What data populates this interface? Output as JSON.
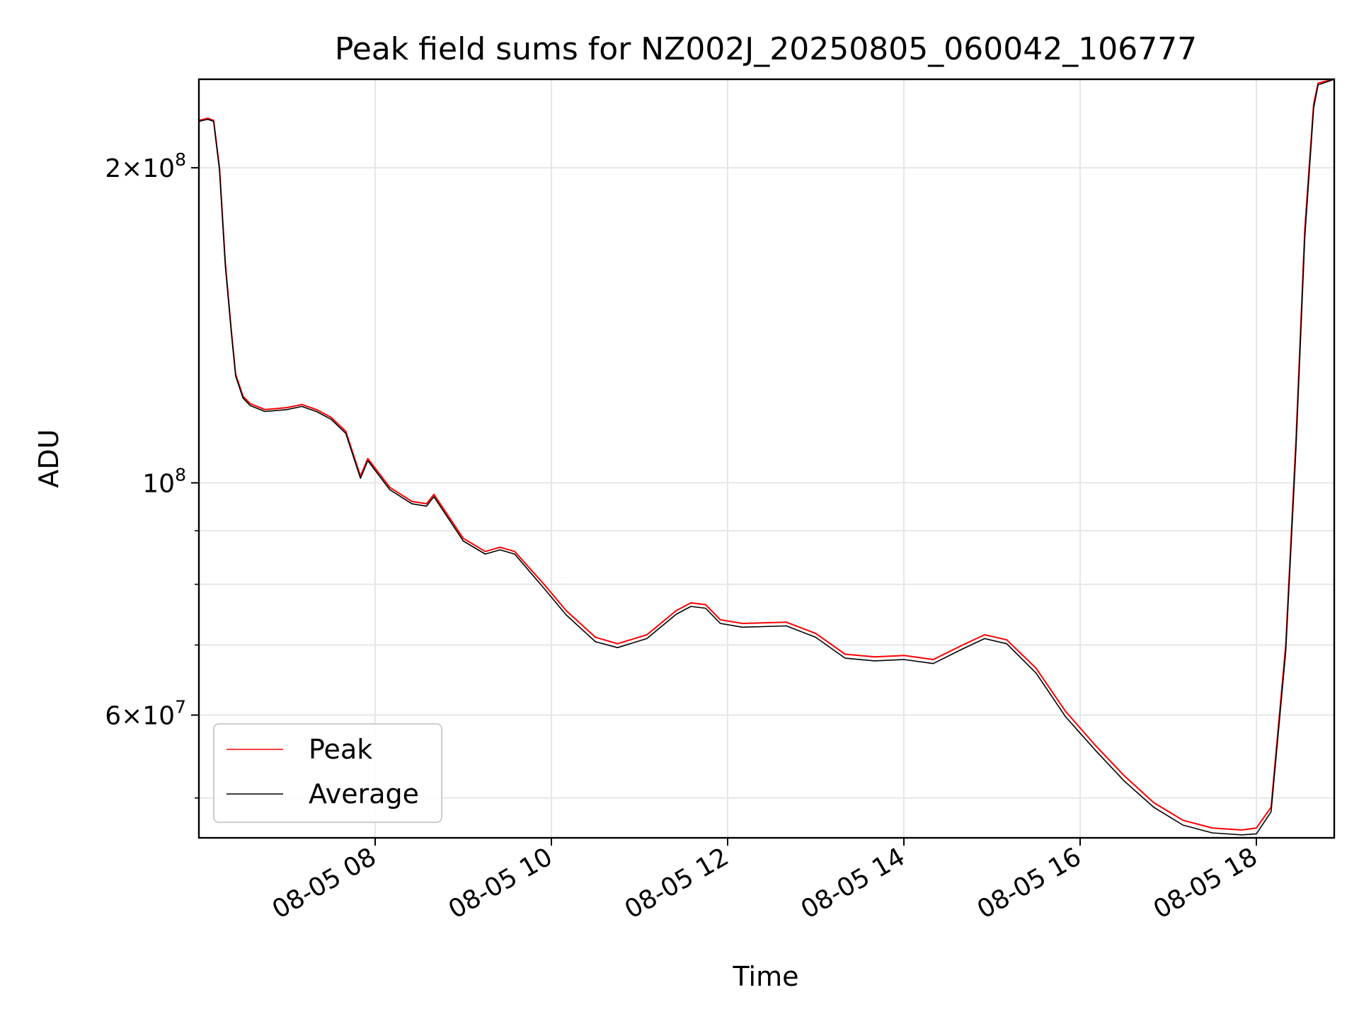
{
  "chart_data": {
    "type": "line",
    "title": "Peak field sums for NZ002J_20250805_060042_106777",
    "xlabel": "Time",
    "ylabel": "ADU",
    "y_scale": "log",
    "ylim": [
      45800000,
      243000000
    ],
    "xlim": [
      "2025-08-05T06:00",
      "2025-08-05T18:53"
    ],
    "grid": true,
    "legend_position": "lower left",
    "x_ticks": [
      {
        "value": "2025-08-05T08:00",
        "label": "08-05 08"
      },
      {
        "value": "2025-08-05T10:00",
        "label": "08-05 10"
      },
      {
        "value": "2025-08-05T12:00",
        "label": "08-05 12"
      },
      {
        "value": "2025-08-05T14:00",
        "label": "08-05 14"
      },
      {
        "value": "2025-08-05T16:00",
        "label": "08-05 16"
      },
      {
        "value": "2025-08-05T18:00",
        "label": "08-05 18"
      }
    ],
    "y_ticks_major": [
      {
        "value": 60000000,
        "mant": "6",
        "exp": "7"
      },
      {
        "value": 100000000,
        "mant": "",
        "exp": "8"
      },
      {
        "value": 200000000,
        "mant": "2",
        "exp": "8"
      }
    ],
    "y_ticks_minor": [
      50000000,
      70000000,
      80000000,
      90000000
    ],
    "series": [
      {
        "name": "Peak",
        "color": "#ff0000",
        "points": [
          [
            "2025-08-05T06:00",
            222000000
          ],
          [
            "2025-08-05T06:06",
            223000000
          ],
          [
            "2025-08-05T06:10",
            222000000
          ],
          [
            "2025-08-05T06:14",
            200000000
          ],
          [
            "2025-08-05T06:18",
            162000000
          ],
          [
            "2025-08-05T06:22",
            140000000
          ],
          [
            "2025-08-05T06:25",
            127000000
          ],
          [
            "2025-08-05T06:30",
            121000000
          ],
          [
            "2025-08-05T06:35",
            119000000
          ],
          [
            "2025-08-05T06:45",
            117500000
          ],
          [
            "2025-08-05T07:00",
            118000000
          ],
          [
            "2025-08-05T07:10",
            118800000
          ],
          [
            "2025-08-05T07:20",
            117500000
          ],
          [
            "2025-08-05T07:30",
            115500000
          ],
          [
            "2025-08-05T07:40",
            112000000
          ],
          [
            "2025-08-05T07:50",
            101500000
          ],
          [
            "2025-08-05T07:55",
            105500000
          ],
          [
            "2025-08-05T08:10",
            99000000
          ],
          [
            "2025-08-05T08:25",
            96000000
          ],
          [
            "2025-08-05T08:35",
            95500000
          ],
          [
            "2025-08-05T08:40",
            97500000
          ],
          [
            "2025-08-05T09:00",
            88500000
          ],
          [
            "2025-08-05T09:15",
            86000000
          ],
          [
            "2025-08-05T09:25",
            86800000
          ],
          [
            "2025-08-05T09:35",
            86000000
          ],
          [
            "2025-08-05T09:55",
            80000000
          ],
          [
            "2025-08-05T10:10",
            75500000
          ],
          [
            "2025-08-05T10:30",
            71200000
          ],
          [
            "2025-08-05T10:45",
            70200000
          ],
          [
            "2025-08-05T11:05",
            71600000
          ],
          [
            "2025-08-05T11:25",
            75500000
          ],
          [
            "2025-08-05T11:35",
            76800000
          ],
          [
            "2025-08-05T11:45",
            76500000
          ],
          [
            "2025-08-05T11:55",
            74000000
          ],
          [
            "2025-08-05T12:10",
            73400000
          ],
          [
            "2025-08-05T12:40",
            73600000
          ],
          [
            "2025-08-05T13:00",
            71800000
          ],
          [
            "2025-08-05T13:20",
            68600000
          ],
          [
            "2025-08-05T13:40",
            68200000
          ],
          [
            "2025-08-05T14:00",
            68400000
          ],
          [
            "2025-08-05T14:20",
            67800000
          ],
          [
            "2025-08-05T14:40",
            70000000
          ],
          [
            "2025-08-05T14:55",
            71600000
          ],
          [
            "2025-08-05T15:10",
            70800000
          ],
          [
            "2025-08-05T15:30",
            66500000
          ],
          [
            "2025-08-05T15:50",
            60500000
          ],
          [
            "2025-08-05T16:10",
            56200000
          ],
          [
            "2025-08-05T16:30",
            52500000
          ],
          [
            "2025-08-05T16:50",
            49500000
          ],
          [
            "2025-08-05T17:10",
            47600000
          ],
          [
            "2025-08-05T17:30",
            46800000
          ],
          [
            "2025-08-05T17:50",
            46600000
          ],
          [
            "2025-08-05T18:00",
            46800000
          ],
          [
            "2025-08-05T18:10",
            49000000
          ],
          [
            "2025-08-05T18:20",
            70000000
          ],
          [
            "2025-08-05T18:27",
            110000000
          ],
          [
            "2025-08-05T18:33",
            175000000
          ],
          [
            "2025-08-05T18:39",
            230000000
          ],
          [
            "2025-08-05T18:42",
            241000000
          ],
          [
            "2025-08-05T18:53",
            243000000
          ]
        ]
      },
      {
        "name": "Average",
        "color": "#000000",
        "points": [
          [
            "2025-08-05T06:00",
            221500000
          ],
          [
            "2025-08-05T06:06",
            222500000
          ],
          [
            "2025-08-05T06:10",
            221500000
          ],
          [
            "2025-08-05T06:14",
            199000000
          ],
          [
            "2025-08-05T06:18",
            161000000
          ],
          [
            "2025-08-05T06:22",
            139500000
          ],
          [
            "2025-08-05T06:25",
            126500000
          ],
          [
            "2025-08-05T06:30",
            120500000
          ],
          [
            "2025-08-05T06:35",
            118500000
          ],
          [
            "2025-08-05T06:45",
            117000000
          ],
          [
            "2025-08-05T07:00",
            117500000
          ],
          [
            "2025-08-05T07:10",
            118300000
          ],
          [
            "2025-08-05T07:20",
            117000000
          ],
          [
            "2025-08-05T07:30",
            115000000
          ],
          [
            "2025-08-05T07:40",
            111500000
          ],
          [
            "2025-08-05T07:50",
            101000000
          ],
          [
            "2025-08-05T07:55",
            105000000
          ],
          [
            "2025-08-05T08:10",
            98500000
          ],
          [
            "2025-08-05T08:25",
            95500000
          ],
          [
            "2025-08-05T08:35",
            95000000
          ],
          [
            "2025-08-05T08:40",
            97000000
          ],
          [
            "2025-08-05T09:00",
            88000000
          ],
          [
            "2025-08-05T09:15",
            85500000
          ],
          [
            "2025-08-05T09:25",
            86300000
          ],
          [
            "2025-08-05T09:35",
            85500000
          ],
          [
            "2025-08-05T09:55",
            79300000
          ],
          [
            "2025-08-05T10:10",
            74800000
          ],
          [
            "2025-08-05T10:30",
            70500000
          ],
          [
            "2025-08-05T10:45",
            69600000
          ],
          [
            "2025-08-05T11:05",
            71000000
          ],
          [
            "2025-08-05T11:25",
            74900000
          ],
          [
            "2025-08-05T11:35",
            76200000
          ],
          [
            "2025-08-05T11:45",
            75900000
          ],
          [
            "2025-08-05T11:55",
            73400000
          ],
          [
            "2025-08-05T12:10",
            72800000
          ],
          [
            "2025-08-05T12:40",
            73000000
          ],
          [
            "2025-08-05T13:00",
            71200000
          ],
          [
            "2025-08-05T13:20",
            68000000
          ],
          [
            "2025-08-05T13:40",
            67600000
          ],
          [
            "2025-08-05T14:00",
            67800000
          ],
          [
            "2025-08-05T14:20",
            67200000
          ],
          [
            "2025-08-05T14:40",
            69400000
          ],
          [
            "2025-08-05T14:55",
            71000000
          ],
          [
            "2025-08-05T15:10",
            70200000
          ],
          [
            "2025-08-05T15:30",
            65800000
          ],
          [
            "2025-08-05T15:50",
            59800000
          ],
          [
            "2025-08-05T16:10",
            55600000
          ],
          [
            "2025-08-05T16:30",
            51900000
          ],
          [
            "2025-08-05T16:50",
            49000000
          ],
          [
            "2025-08-05T17:10",
            47100000
          ],
          [
            "2025-08-05T17:30",
            46300000
          ],
          [
            "2025-08-05T17:50",
            46100000
          ],
          [
            "2025-08-05T18:00",
            46200000
          ],
          [
            "2025-08-05T18:10",
            48500000
          ],
          [
            "2025-08-05T18:20",
            69000000
          ],
          [
            "2025-08-05T18:27",
            108000000
          ],
          [
            "2025-08-05T18:33",
            172000000
          ],
          [
            "2025-08-05T18:39",
            228000000
          ],
          [
            "2025-08-05T18:42",
            240000000
          ],
          [
            "2025-08-05T18:53",
            243000000
          ]
        ]
      }
    ]
  }
}
